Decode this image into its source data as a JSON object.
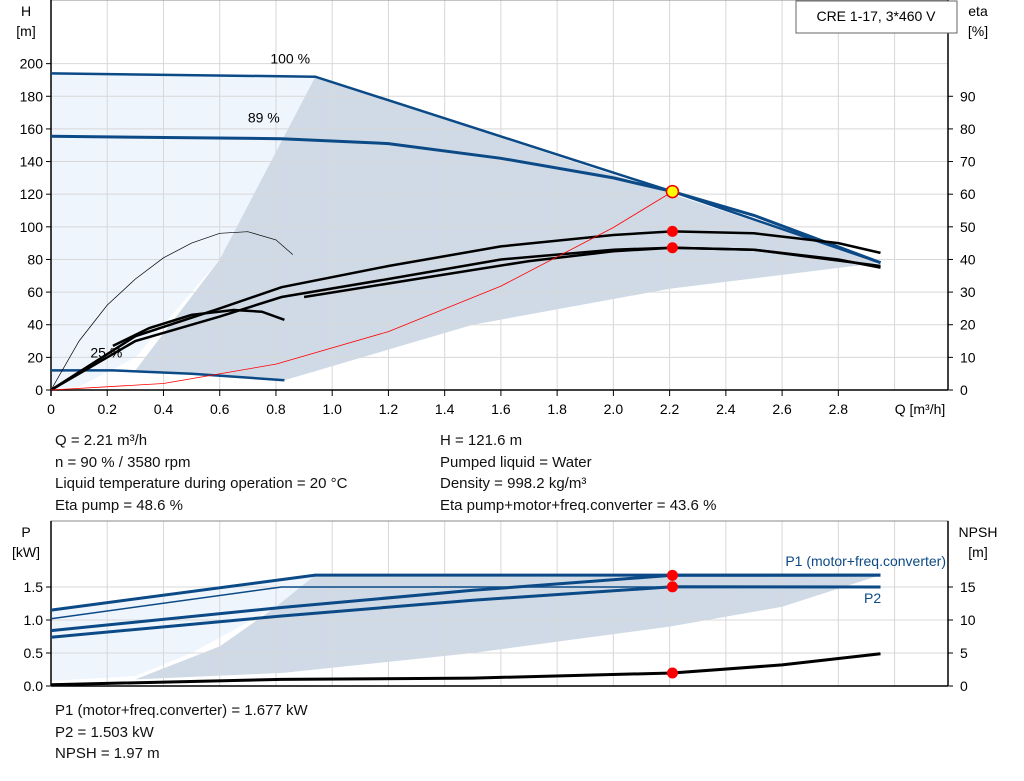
{
  "chart_data": [
    {
      "type": "line",
      "title": "CRE 1-17, 3*460 V",
      "xlabel": "Q [m³/h]",
      "ylabel": "H\n[m]",
      "y2label": "eta\n[%]",
      "xlim": [
        0,
        3.19
      ],
      "ylim": [
        0,
        239
      ],
      "y2lim": [
        0,
        119.5
      ],
      "xticks": [
        0,
        0.2,
        0.4,
        0.6,
        0.8,
        1.0,
        1.2,
        1.4,
        1.6,
        1.8,
        2.0,
        2.2,
        2.4,
        2.6,
        2.8
      ],
      "yticks": [
        0,
        20,
        40,
        60,
        80,
        100,
        120,
        140,
        160,
        180,
        200
      ],
      "y2ticks": [
        0,
        10,
        20,
        30,
        40,
        50,
        60,
        70,
        80,
        90
      ],
      "grid": true,
      "speed_labels": [
        {
          "text": "100 %",
          "x": 0.78,
          "y": 200
        },
        {
          "text": "89 %",
          "x": 0.7,
          "y": 164
        },
        {
          "text": "25 %",
          "x": 0.14,
          "y": 20
        }
      ],
      "series": [
        {
          "kind": "qh",
          "points": [
            [
              0,
              194
            ],
            [
              0.94,
              192
            ],
            [
              2.21,
              121.6
            ],
            [
              2.95,
              78
            ]
          ]
        },
        {
          "kind": "qh",
          "points": [
            [
              0,
              155.5
            ],
            [
              0.82,
              154
            ],
            [
              1.2,
              151
            ],
            [
              1.6,
              142
            ],
            [
              2.0,
              130
            ],
            [
              2.21,
              121.6
            ],
            [
              2.5,
              107
            ],
            [
              2.95,
              78
            ]
          ]
        },
        {
          "kind": "qh",
          "points": [
            [
              0,
              12
            ],
            [
              0.22,
              12
            ],
            [
              0.5,
              10
            ],
            [
              0.83,
              6
            ]
          ]
        },
        {
          "kind": "eta",
          "points": [
            [
              0,
              0
            ],
            [
              0.1,
              30
            ],
            [
              0.2,
              52
            ],
            [
              0.3,
              68
            ],
            [
              0.4,
              81
            ],
            [
              0.5,
              90
            ],
            [
              0.6,
              96
            ],
            [
              0.7,
              97
            ],
            [
              0.8,
              92
            ],
            [
              0.86,
              83
            ]
          ]
        },
        {
          "kind": "eta",
          "points": [
            [
              0.22,
              27
            ],
            [
              0.35,
              38
            ],
            [
              0.5,
              46
            ],
            [
              0.65,
              49
            ],
            [
              0.75,
              48
            ],
            [
              0.83,
              43
            ]
          ]
        },
        {
          "kind": "eta",
          "points": [
            [
              0,
              0
            ],
            [
              0.3,
              33
            ],
            [
              0.6,
              50
            ],
            [
              0.82,
              63
            ],
            [
              1.2,
              76
            ],
            [
              1.6,
              88
            ],
            [
              2.0,
              95
            ],
            [
              2.21,
              97.2
            ],
            [
              2.5,
              96
            ],
            [
              2.8,
              90
            ],
            [
              2.95,
              84
            ]
          ]
        },
        {
          "kind": "eta",
          "points": [
            [
              0,
              0
            ],
            [
              0.3,
              30
            ],
            [
              0.6,
              45
            ],
            [
              0.82,
              57
            ],
            [
              1.2,
              68
            ],
            [
              1.6,
              80
            ],
            [
              2.0,
              86
            ],
            [
              2.21,
              87.2
            ],
            [
              2.5,
              86
            ],
            [
              2.8,
              80
            ],
            [
              2.95,
              75
            ]
          ]
        },
        {
          "kind": "eta",
          "points": [
            [
              0.9,
              57
            ],
            [
              1.3,
              68
            ],
            [
              1.7,
              79
            ],
            [
              2.0,
              85
            ],
            [
              2.21,
              87.2
            ],
            [
              2.5,
              86
            ],
            [
              2.95,
              76
            ]
          ]
        },
        {
          "kind": "system",
          "points": [
            [
              0,
              0
            ],
            [
              0.4,
              4
            ],
            [
              0.8,
              15.9
            ],
            [
              1.2,
              35.8
            ],
            [
              1.6,
              63.7
            ],
            [
              2.0,
              99.6
            ],
            [
              2.21,
              121.6
            ]
          ]
        }
      ],
      "operating_points": [
        {
          "x": 2.21,
          "y": 121.6,
          "color": "#ffff00"
        },
        {
          "x": 2.21,
          "y": 97.2,
          "color": "#ff0000"
        },
        {
          "x": 2.21,
          "y": 87.2,
          "color": "#ff0000"
        }
      ]
    },
    {
      "type": "line",
      "xlabel": "",
      "ylabel": "P\n[kW]",
      "y2label": "NPSH\n[m]",
      "xlim": [
        0,
        3.19
      ],
      "ylim": [
        0,
        2.5
      ],
      "y2lim": [
        0,
        25
      ],
      "yticks": [
        0.0,
        0.5,
        1.0,
        1.5
      ],
      "y2ticks": [
        0,
        5,
        10,
        15
      ],
      "grid": true,
      "series": [
        {
          "name": "P1 (motor+freq.converter)",
          "points": [
            [
              0,
              1.15
            ],
            [
              0.94,
              1.68
            ],
            [
              2.95,
              1.68
            ]
          ]
        },
        {
          "points": [
            [
              0,
              1.02
            ],
            [
              0.82,
              1.5
            ],
            [
              2.95,
              1.5
            ]
          ]
        },
        {
          "points": [
            [
              0,
              0.84
            ],
            [
              0.82,
              1.19
            ],
            [
              1.5,
              1.45
            ],
            [
              2.21,
              1.677
            ],
            [
              2.95,
              1.68
            ]
          ]
        },
        {
          "name": "P2",
          "points": [
            [
              0,
              0.74
            ],
            [
              0.82,
              1.06
            ],
            [
              1.5,
              1.3
            ],
            [
              2.21,
              1.503
            ],
            [
              2.95,
              1.5
            ]
          ]
        },
        {
          "kind": "npsh",
          "points": [
            [
              0,
              0.02
            ],
            [
              0.82,
              0.1
            ],
            [
              1.5,
              0.12
            ],
            [
              2.21,
              0.197
            ],
            [
              2.6,
              0.32
            ],
            [
              2.95,
              0.49
            ]
          ]
        }
      ],
      "operating_points": [
        {
          "x": 2.21,
          "y": 1.677
        },
        {
          "x": 2.21,
          "y": 1.503
        },
        {
          "x": 2.21,
          "y": 0.197
        }
      ]
    }
  ],
  "results_top": {
    "q": "Q = 2.21 m³/h",
    "n": "n = 90 % / 3580 rpm",
    "temp": "Liquid temperature during operation = 20 °C",
    "eta_pump": "Eta pump = 48.6 %",
    "h": "H = 121.6 m",
    "liquid": "Pumped liquid = Water",
    "density": "Density = 998.2 kg/m³",
    "eta_total": "Eta pump+motor+freq.converter = 43.6 %"
  },
  "results_bottom": {
    "p1": "P1 (motor+freq.converter) = 1.677 kW",
    "p2": "P2 = 1.503 kW",
    "npsh": "NPSH = 1.97 m"
  },
  "colors": {
    "curve": "#0b4a86",
    "shade": "#cfdae6",
    "light": "#eef5fd",
    "system": "#ff0000"
  }
}
